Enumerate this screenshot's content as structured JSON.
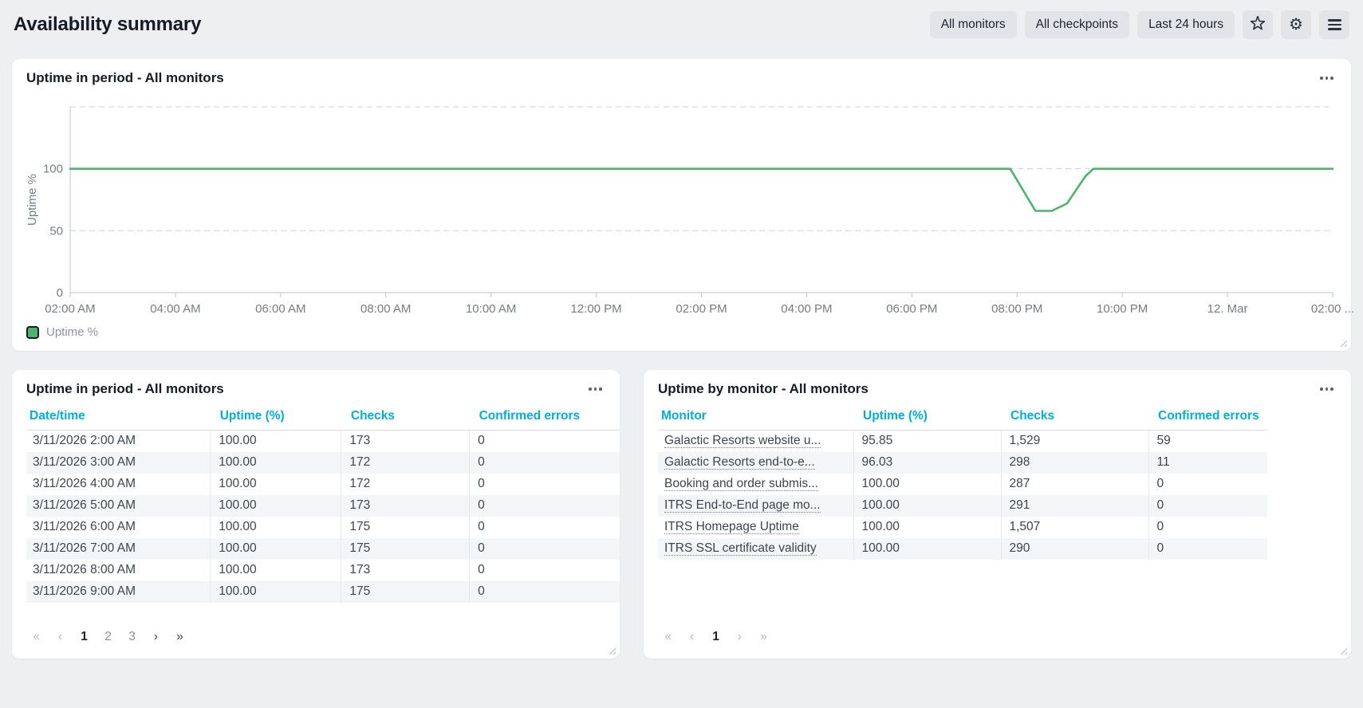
{
  "header": {
    "title": "Availability summary",
    "filters": [
      {
        "label": "All monitors"
      },
      {
        "label": "All checkpoints"
      },
      {
        "label": "Last 24 hours"
      }
    ],
    "icon_buttons": [
      {
        "name": "favorite",
        "icon": "star-icon"
      },
      {
        "name": "settings",
        "icon": "gear-icon"
      },
      {
        "name": "menu",
        "icon": "hamburger-icon"
      }
    ]
  },
  "chart_card": {
    "title": "Uptime in period - All monitors",
    "menu_icon": "ellipsis-icon"
  },
  "chart_data": {
    "type": "line",
    "title": "Uptime in period - All monitors",
    "xlabel": "",
    "ylabel": "Uptime %",
    "y_ticks": [
      0,
      50,
      100
    ],
    "ylim": [
      0,
      150
    ],
    "grid_values": [
      50,
      100,
      150
    ],
    "grid_style": "dashed",
    "x_tick_labels": [
      "02:00 AM",
      "04:00 AM",
      "06:00 AM",
      "08:00 AM",
      "10:00 AM",
      "12:00 PM",
      "02:00 PM",
      "04:00 PM",
      "06:00 PM",
      "08:00 PM",
      "10:00 PM",
      "12. Mar",
      "02:00 ..."
    ],
    "x_range_hours_from_first_tick": [
      0,
      24
    ],
    "series": [
      {
        "name": "Uptime %",
        "color": "#4cb56d",
        "points": [
          [
            0,
            100
          ],
          [
            2,
            100
          ],
          [
            4,
            100
          ],
          [
            6,
            100
          ],
          [
            8,
            100
          ],
          [
            10,
            100
          ],
          [
            12,
            100
          ],
          [
            14,
            100
          ],
          [
            16,
            100
          ],
          [
            17.87,
            100
          ],
          [
            18.35,
            66
          ],
          [
            18.66,
            66
          ],
          [
            18.95,
            72
          ],
          [
            19.3,
            94
          ],
          [
            19.45,
            100
          ],
          [
            20,
            100
          ],
          [
            22,
            100
          ],
          [
            24,
            100
          ]
        ]
      }
    ],
    "legend": [
      {
        "label": "Uptime %",
        "color": "#4cb56d",
        "position": "bottom-left"
      }
    ]
  },
  "period_table": {
    "title": "Uptime in period - All monitors",
    "columns": [
      "Date/time",
      "Uptime (%)",
      "Checks",
      "Confirmed errors"
    ],
    "rows": [
      [
        "3/11/2026 2:00 AM",
        "100.00",
        "173",
        "0"
      ],
      [
        "3/11/2026 3:00 AM",
        "100.00",
        "172",
        "0"
      ],
      [
        "3/11/2026 4:00 AM",
        "100.00",
        "172",
        "0"
      ],
      [
        "3/11/2026 5:00 AM",
        "100.00",
        "173",
        "0"
      ],
      [
        "3/11/2026 6:00 AM",
        "100.00",
        "175",
        "0"
      ],
      [
        "3/11/2026 7:00 AM",
        "100.00",
        "175",
        "0"
      ],
      [
        "3/11/2026 8:00 AM",
        "100.00",
        "173",
        "0"
      ],
      [
        "3/11/2026 9:00 AM",
        "100.00",
        "175",
        "0"
      ]
    ],
    "pagination": {
      "current_page": "1",
      "items": [
        {
          "label": "«",
          "enabled": false
        },
        {
          "label": "‹",
          "enabled": false
        },
        {
          "label": "1",
          "page": true,
          "current": true
        },
        {
          "label": "2",
          "page": true
        },
        {
          "label": "3",
          "page": true
        },
        {
          "label": "›",
          "enabled": true
        },
        {
          "label": "»",
          "enabled": true
        }
      ]
    }
  },
  "monitor_table": {
    "title": "Uptime by monitor - All monitors",
    "columns": [
      "Monitor",
      "Uptime (%)",
      "Checks",
      "Confirmed errors"
    ],
    "rows": [
      [
        "Galactic Resorts website u...",
        "95.85",
        "1,529",
        "59"
      ],
      [
        "Galactic Resorts end-to-e...",
        "96.03",
        "298",
        "11"
      ],
      [
        "Booking and order submis...",
        "100.00",
        "287",
        "0"
      ],
      [
        "ITRS End-to-End page mo...",
        "100.00",
        "291",
        "0"
      ],
      [
        "ITRS Homepage Uptime",
        "100.00",
        "1,507",
        "0"
      ],
      [
        "ITRS SSL certificate validity",
        "100.00",
        "290",
        "0"
      ]
    ],
    "pagination": {
      "current_page": "1",
      "items": [
        {
          "label": "«",
          "enabled": false
        },
        {
          "label": "‹",
          "enabled": false
        },
        {
          "label": "1",
          "page": true,
          "current": true
        },
        {
          "label": "›",
          "enabled": false
        },
        {
          "label": "»",
          "enabled": false
        }
      ]
    }
  },
  "colors": {
    "accent_cyan": "#00b0d8",
    "line_green": "#4cb56d",
    "page_bg": "#edeff1",
    "button_bg": "#e2e4e7",
    "row_stripe": "#f4f5f6"
  }
}
